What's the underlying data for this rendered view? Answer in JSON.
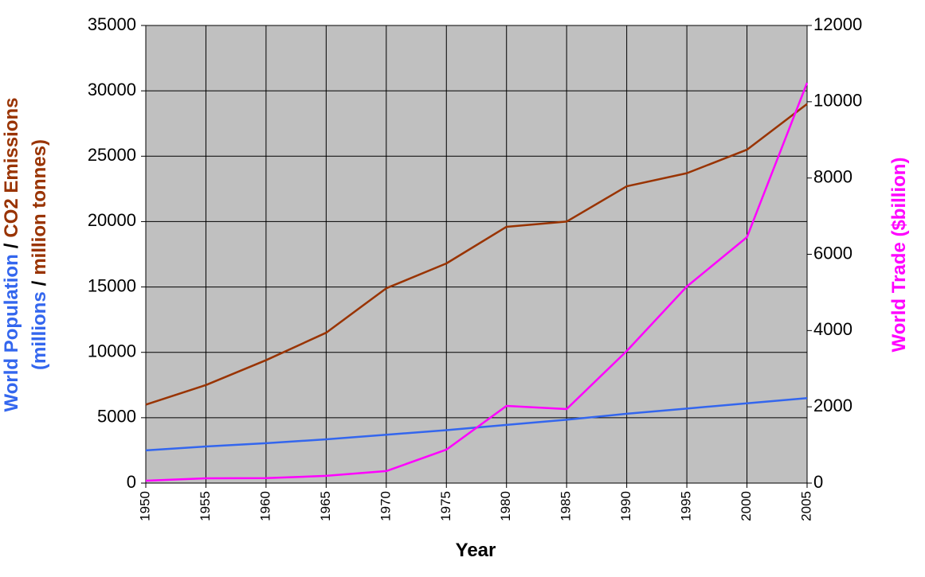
{
  "chart_data": {
    "type": "line",
    "x_label": "Year",
    "y_label": {
      "line1": [
        {
          "text": "World Population",
          "series": 0
        },
        {
          "text": "/"
        },
        {
          "text": "CO2 Emissions",
          "series": 1
        }
      ],
      "line2": [
        {
          "text": "(millions",
          "series": 0
        },
        {
          "text": "/"
        },
        {
          "text": "million tonnes)",
          "series": 1
        }
      ]
    },
    "y2_label": "World Trade ($billion)",
    "x": [
      1950,
      1955,
      1960,
      1965,
      1970,
      1975,
      1980,
      1985,
      1990,
      1995,
      2000,
      2005
    ],
    "xlim": [
      1950,
      2005
    ],
    "xticks": [
      1950,
      1955,
      1960,
      1965,
      1970,
      1975,
      1980,
      1985,
      1990,
      1995,
      2000,
      2005
    ],
    "ylim": [
      0,
      35000
    ],
    "yticks": [
      0,
      5000,
      10000,
      15000,
      20000,
      25000,
      30000,
      35000
    ],
    "y2lim": [
      0,
      12000
    ],
    "y2ticks": [
      0,
      2000,
      4000,
      6000,
      8000,
      10000,
      12000
    ],
    "grid": true,
    "plot_background": "#c0c0c0",
    "series": [
      {
        "name": "World Population",
        "color": "#3366ee",
        "values": [
          2500,
          2800,
          3050,
          3350,
          3700,
          4050,
          4450,
          4850,
          5300,
          5700,
          6100,
          6500
        ]
      },
      {
        "name": "CO2 Emissions",
        "color": "#993300",
        "values": [
          6000,
          7500,
          9400,
          11500,
          14900,
          16800,
          19600,
          20000,
          22700,
          23700,
          25500,
          29000
        ]
      },
      {
        "name": "World Trade",
        "color": "#ff00ff",
        "axis": "y2",
        "values": [
          63,
          125,
          130,
          190,
          315,
          877,
          2024,
          1941,
          3464,
          5155,
          6449,
          10497
        ]
      }
    ]
  }
}
